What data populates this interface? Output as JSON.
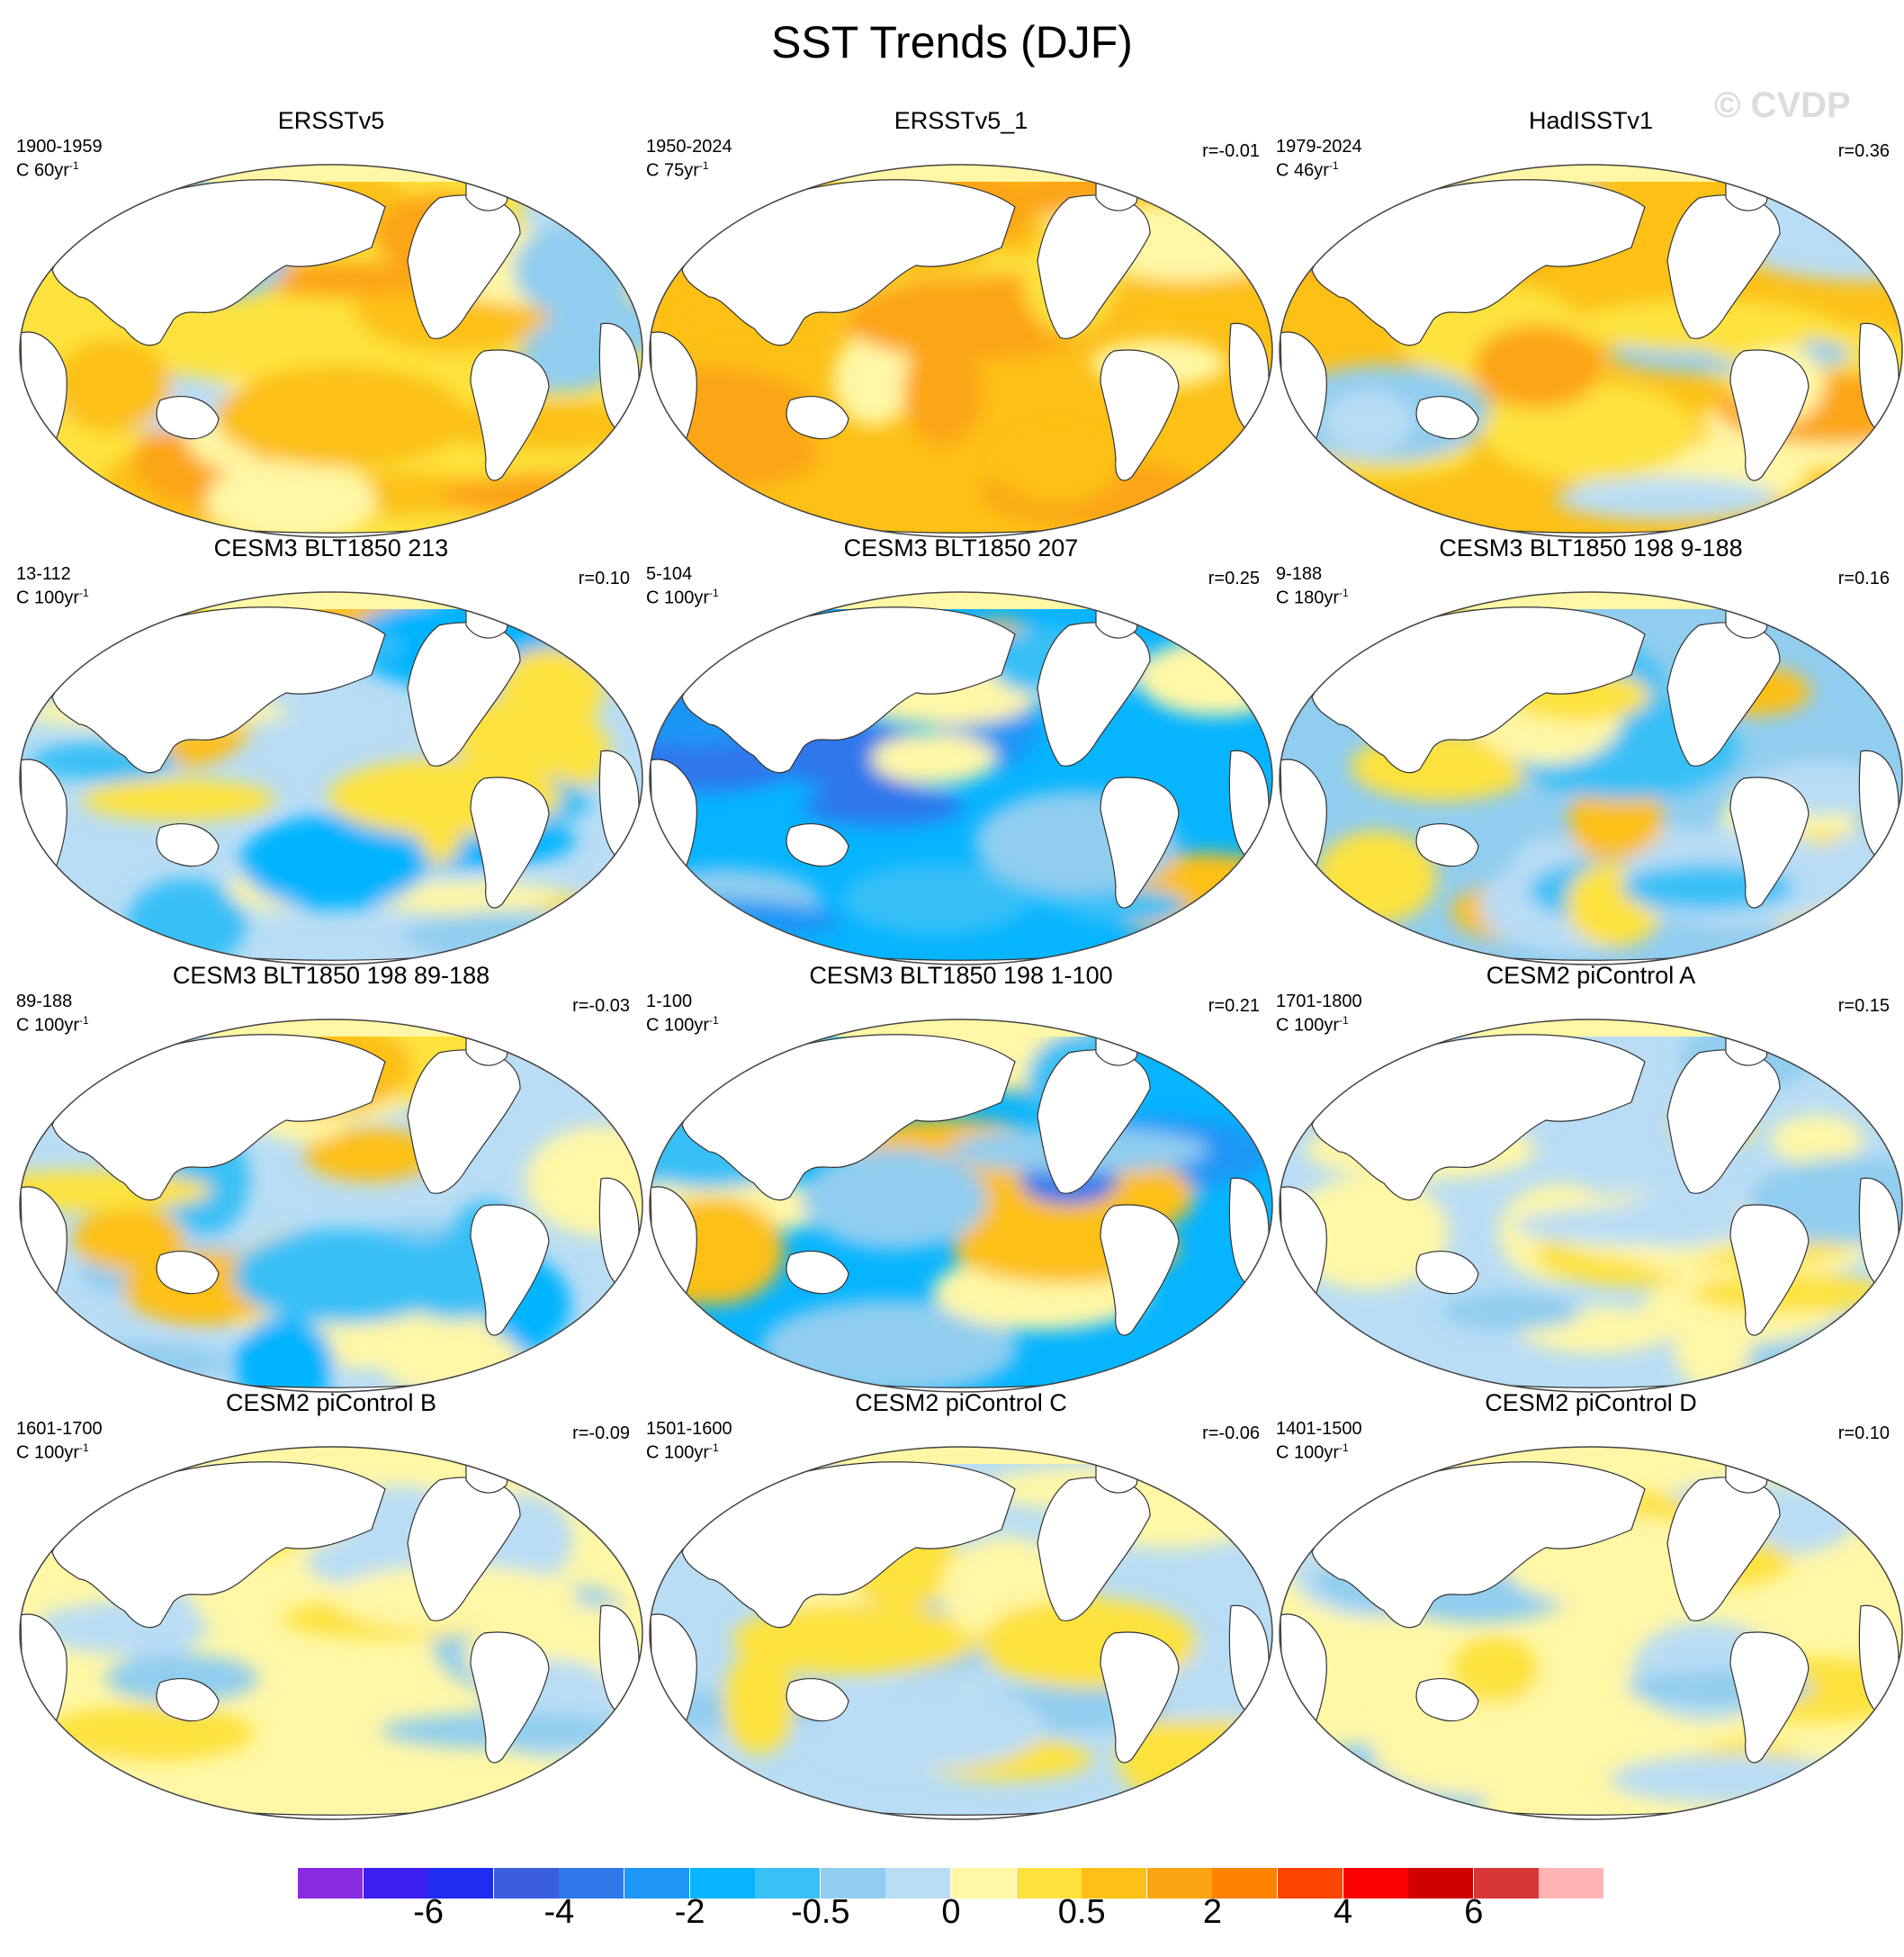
{
  "title": "SST Trends (DJF)",
  "watermark": "© CVDP",
  "panels": [
    {
      "title": "ERSSTv5",
      "period": "1900-1959",
      "units": "C 60yr",
      "units_exp": "-1",
      "corr": "",
      "pattern": "warm"
    },
    {
      "title": "ERSSTv5_1",
      "period": "1950-2024",
      "units": "C 75yr",
      "units_exp": "-1",
      "corr": "r=-0.01",
      "pattern": "warm_strong"
    },
    {
      "title": "HadISSTv1",
      "period": "1979-2024",
      "units": "C 46yr",
      "units_exp": "-1",
      "corr": "r=0.36",
      "pattern": "warm_lanina"
    },
    {
      "title": "CESM3 BLT1850 213",
      "period": "13-112",
      "units": "C 100yr",
      "units_exp": "-1",
      "corr": "r=0.10",
      "pattern": "mixed_cool"
    },
    {
      "title": "CESM3 BLT1850 207",
      "period": "5-104",
      "units": "C 100yr",
      "units_exp": "-1",
      "corr": "r=0.25",
      "pattern": "cool_strong"
    },
    {
      "title": "CESM3 BLT1850 198 9-188",
      "period": "9-188",
      "units": "C 180yr",
      "units_exp": "-1",
      "corr": "r=0.16",
      "pattern": "cool_mixed"
    },
    {
      "title": "CESM3 BLT1850 198 89-188",
      "period": "89-188",
      "units": "C 100yr",
      "units_exp": "-1",
      "corr": "r=-0.03",
      "pattern": "mixed"
    },
    {
      "title": "CESM3 BLT1850 198 1-100",
      "period": "1-100",
      "units": "C 100yr",
      "units_exp": "-1",
      "corr": "r=0.21",
      "pattern": "cool_strong"
    },
    {
      "title": "CESM2 piControl A",
      "period": "1701-1800",
      "units": "C 100yr",
      "units_exp": "-1",
      "corr": "r=0.15",
      "pattern": "weak"
    },
    {
      "title": "CESM2 piControl B",
      "period": "1601-1700",
      "units": "C 100yr",
      "units_exp": "-1",
      "corr": "r=-0.09",
      "pattern": "weak_warm"
    },
    {
      "title": "CESM2 piControl C",
      "period": "1501-1600",
      "units": "C 100yr",
      "units_exp": "-1",
      "corr": "r=-0.06",
      "pattern": "weak"
    },
    {
      "title": "CESM2 piControl D",
      "period": "1401-1500",
      "units": "C 100yr",
      "units_exp": "-1",
      "corr": "r=0.10",
      "pattern": "weak_warm"
    }
  ],
  "colorbar": {
    "colors": [
      "#8a2be2",
      "#3a1ff0",
      "#1f2cf2",
      "#3b5ee0",
      "#2f78ec",
      "#1e96f5",
      "#06b4ff",
      "#39c0f6",
      "#90cdef",
      "#b9ddf4",
      "#fff7a6",
      "#fde23e",
      "#fcc016",
      "#fca512",
      "#fc8200",
      "#fc4600",
      "#fa0000",
      "#cf0000",
      "#d83737",
      "#ffb4b4"
    ],
    "labels": [
      "-6",
      "-4",
      "-2",
      "-0.5",
      "0",
      "0.5",
      "2",
      "4",
      "6"
    ],
    "label_slots": [
      2,
      4,
      6,
      8,
      10,
      12,
      14,
      16,
      18
    ]
  }
}
